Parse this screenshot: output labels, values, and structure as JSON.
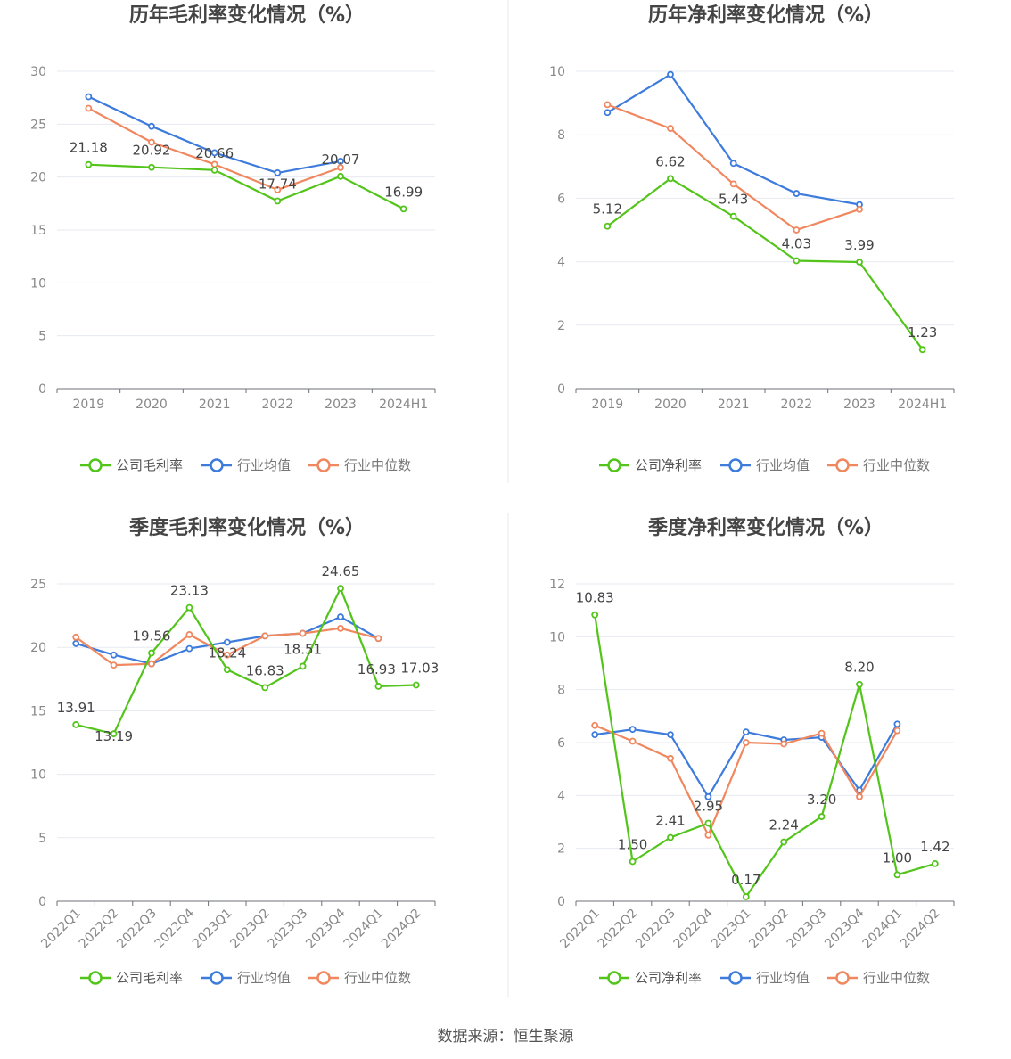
{
  "source_label": "数据来源：恒生聚源",
  "legend_icon": "circle-line-icon",
  "chart_data": [
    {
      "type": "line",
      "title": "历年毛利率变化情况（%）",
      "categories": [
        "2019",
        "2020",
        "2021",
        "2022",
        "2023",
        "2024H1"
      ],
      "ylim": [
        0,
        30
      ],
      "yticks": [
        0,
        5,
        10,
        15,
        20,
        25,
        30
      ],
      "grid": true,
      "legend_position": "bottom",
      "series": [
        {
          "name": "公司毛利率",
          "color": "#52c41a",
          "values": [
            21.18,
            20.92,
            20.66,
            17.74,
            20.07,
            16.99
          ],
          "labels": [
            "21.18",
            "20.92",
            "20.66",
            "17.74",
            "20.07",
            "16.99"
          ]
        },
        {
          "name": "行业均值",
          "color": "#3d7bdc",
          "values": [
            27.6,
            24.8,
            22.3,
            20.4,
            21.5,
            null
          ]
        },
        {
          "name": "行业中位数",
          "color": "#f0875e",
          "values": [
            26.5,
            23.3,
            21.2,
            18.8,
            20.9,
            null
          ]
        }
      ]
    },
    {
      "type": "line",
      "title": "历年净利率变化情况（%）",
      "categories": [
        "2019",
        "2020",
        "2021",
        "2022",
        "2023",
        "2024H1"
      ],
      "ylim": [
        0,
        10
      ],
      "yticks": [
        0,
        2,
        4,
        6,
        8,
        10
      ],
      "grid": true,
      "legend_position": "bottom",
      "series": [
        {
          "name": "公司净利率",
          "color": "#52c41a",
          "values": [
            5.12,
            6.62,
            5.43,
            4.03,
            3.99,
            1.23
          ],
          "labels": [
            "5.12",
            "6.62",
            "5.43",
            "4.03",
            "3.99",
            "1.23"
          ]
        },
        {
          "name": "行业均值",
          "color": "#3d7bdc",
          "values": [
            8.7,
            9.9,
            7.1,
            6.15,
            5.8,
            null
          ]
        },
        {
          "name": "行业中位数",
          "color": "#f0875e",
          "values": [
            8.95,
            8.2,
            6.45,
            5.0,
            5.65,
            null
          ]
        }
      ]
    },
    {
      "type": "line",
      "title": "季度毛利率变化情况（%）",
      "categories": [
        "2022Q1",
        "2022Q2",
        "2022Q3",
        "2022Q4",
        "2023Q1",
        "2023Q2",
        "2023Q3",
        "2023Q4",
        "2024Q1",
        "2024Q2"
      ],
      "ylim": [
        0,
        25
      ],
      "yticks": [
        0,
        5,
        10,
        15,
        20,
        25
      ],
      "grid": true,
      "legend_position": "bottom",
      "series": [
        {
          "name": "公司毛利率",
          "color": "#52c41a",
          "values": [
            13.91,
            13.19,
            19.56,
            23.13,
            18.24,
            16.83,
            18.51,
            24.65,
            16.93,
            17.03
          ],
          "labels": [
            "13.91",
            "13.19",
            "19.56",
            "23.13",
            "18.24",
            "16.83",
            "18.51",
            "24.65",
            "16.93",
            "17.03"
          ]
        },
        {
          "name": "行业均值",
          "color": "#3d7bdc",
          "values": [
            20.3,
            19.4,
            18.7,
            19.9,
            20.4,
            20.9,
            21.1,
            22.4,
            20.7,
            null
          ]
        },
        {
          "name": "行业中位数",
          "color": "#f0875e",
          "values": [
            20.8,
            18.6,
            18.7,
            21.0,
            19.4,
            20.9,
            21.1,
            21.5,
            20.7,
            null
          ]
        }
      ]
    },
    {
      "type": "line",
      "title": "季度净利率变化情况（%）",
      "categories": [
        "2022Q1",
        "2022Q2",
        "2022Q3",
        "2022Q4",
        "2023Q1",
        "2023Q2",
        "2023Q3",
        "2023Q4",
        "2024Q1",
        "2024Q2"
      ],
      "ylim": [
        0,
        12
      ],
      "yticks": [
        0,
        2,
        4,
        6,
        8,
        10,
        12
      ],
      "grid": true,
      "legend_position": "bottom",
      "series": [
        {
          "name": "公司净利率",
          "color": "#52c41a",
          "values": [
            10.83,
            1.5,
            2.41,
            2.95,
            0.17,
            2.24,
            3.2,
            8.2,
            1.0,
            1.42
          ],
          "labels": [
            "10.83",
            "1.50",
            "2.41",
            "2.95",
            "0.17",
            "2.24",
            "3.20",
            "8.20",
            "1.00",
            "1.42"
          ]
        },
        {
          "name": "行业均值",
          "color": "#3d7bdc",
          "values": [
            6.3,
            6.5,
            6.3,
            3.95,
            6.4,
            6.1,
            6.2,
            4.2,
            6.7,
            null
          ]
        },
        {
          "name": "行业中位数",
          "color": "#f0875e",
          "values": [
            6.65,
            6.05,
            5.4,
            2.5,
            6.0,
            5.95,
            6.35,
            3.95,
            6.45,
            null
          ]
        }
      ]
    }
  ]
}
